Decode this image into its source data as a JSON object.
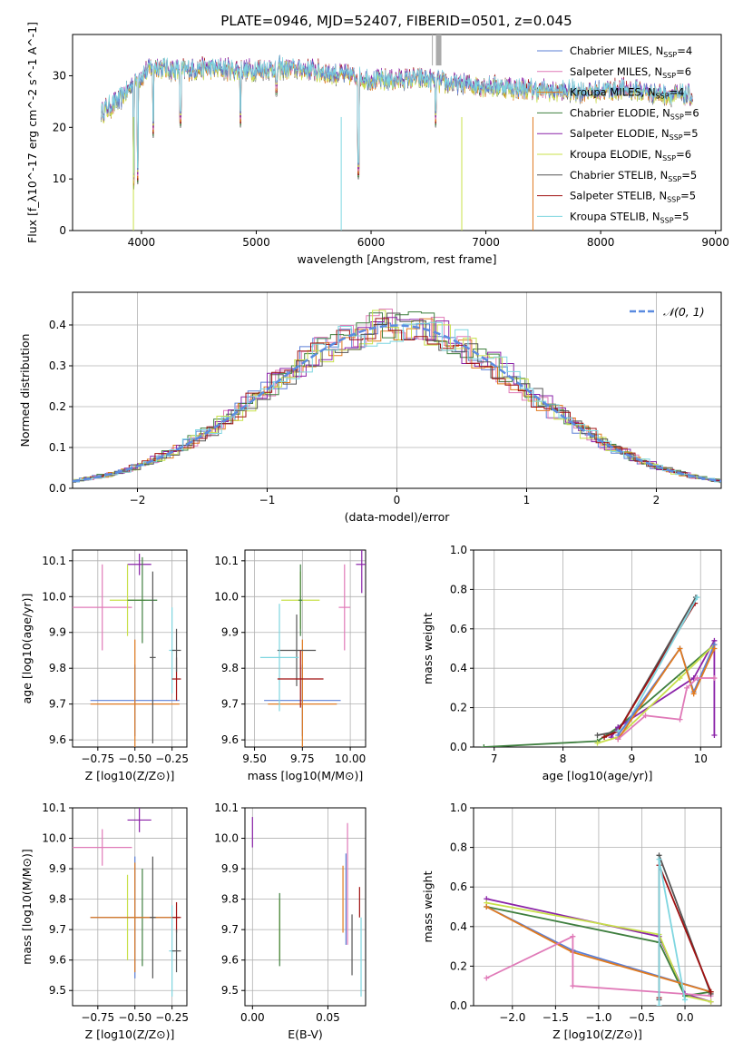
{
  "title": "PLATE=0946, MJD=52407, FIBERID=0501, z=0.045",
  "colors": {
    "chabrier_miles": "#5b7fd6",
    "salpeter_miles": "#e07ab8",
    "kroupa_miles": "#e07a1f",
    "chabrier_elodie": "#3f7f3f",
    "salpeter_elodie": "#8a22a8",
    "kroupa_elodie": "#c8e04a",
    "chabrier_stelib": "#555555",
    "salpeter_stelib": "#a01010",
    "kroupa_stelib": "#7fd6e0",
    "grid": "#b0b0b0",
    "normal": "#5b8be0"
  },
  "chart_data": [
    {
      "id": "spectrum",
      "type": "line",
      "xlabel": "wavelength [Angstrom, rest frame]",
      "ylabel": "Flux [f_λ10^-17 erg cm^-2 s^-1 A^-1]",
      "xlim": [
        3400,
        9050
      ],
      "ylim": [
        0,
        38
      ],
      "xticks": [
        4000,
        5000,
        6000,
        7000,
        8000,
        9000
      ],
      "yticks": [
        0,
        10,
        20,
        30
      ],
      "legend": "top-right",
      "series": [
        {
          "name": "Chabrier MILES, N_SSP=4",
          "key": "chabrier_miles"
        },
        {
          "name": "Salpeter MILES, N_SSP=6",
          "key": "salpeter_miles"
        },
        {
          "name": "Kroupa MILES, N_SSP=4",
          "key": "kroupa_miles"
        },
        {
          "name": "Chabrier ELODIE, N_SSP=6",
          "key": "chabrier_elodie"
        },
        {
          "name": "Salpeter ELODIE, N_SSP=5",
          "key": "salpeter_elodie"
        },
        {
          "name": "Kroupa ELODIE, N_SSP=6",
          "key": "kroupa_elodie"
        },
        {
          "name": "Chabrier STELIB, N_SSP=5",
          "key": "chabrier_stelib"
        },
        {
          "name": "Salpeter STELIB, N_SSP=5",
          "key": "salpeter_stelib"
        },
        {
          "name": "Kroupa STELIB, N_SSP=5",
          "key": "kroupa_stelib"
        }
      ],
      "continuum": [
        [
          3650,
          23
        ],
        [
          3800,
          25
        ],
        [
          3950,
          29
        ],
        [
          4100,
          32
        ],
        [
          4300,
          31
        ],
        [
          4600,
          31.5
        ],
        [
          4900,
          31
        ],
        [
          5200,
          31.5
        ],
        [
          5500,
          31
        ],
        [
          5800,
          30
        ],
        [
          6100,
          29
        ],
        [
          6400,
          29.5
        ],
        [
          6700,
          28.5
        ],
        [
          7000,
          28
        ],
        [
          7300,
          27.5
        ],
        [
          7600,
          27
        ],
        [
          7900,
          27
        ],
        [
          8200,
          27.5
        ],
        [
          8500,
          26.5
        ],
        [
          8800,
          26
        ]
      ],
      "absorption_dips": [
        [
          3934,
          8
        ],
        [
          3968,
          9
        ],
        [
          4101,
          18
        ],
        [
          4340,
          20
        ],
        [
          4861,
          20
        ],
        [
          5175,
          26
        ],
        [
          5890,
          10
        ],
        [
          6563,
          20
        ]
      ]
    },
    {
      "id": "residuals",
      "type": "line",
      "xlabel": "(data-model)/error",
      "ylabel": "Normed distribution",
      "xlim": [
        -2.5,
        2.5
      ],
      "ylim": [
        0,
        0.48
      ],
      "xticks": [
        -2,
        -1,
        0,
        1,
        2
      ],
      "yticks": [
        0.0,
        0.1,
        0.2,
        0.3,
        0.4
      ],
      "legend": "top-right",
      "reference_label": "𝒩(0, 1)"
    },
    {
      "id": "age-vs-Z",
      "type": "scatter",
      "xlabel": "Z [log10(Z/Z⊙)]",
      "ylabel": "age  [log10(age/yr)]",
      "xlim": [
        -0.92,
        -0.15
      ],
      "ylim": [
        9.58,
        10.13
      ],
      "xticks": [
        -0.75,
        -0.5,
        -0.25
      ],
      "yticks": [
        9.6,
        9.7,
        9.8,
        9.9,
        10.0,
        10.1
      ],
      "points": [
        {
          "key": "salpeter_miles",
          "x": -0.72,
          "xerr": 0.2,
          "y": 9.97,
          "yerr": 0.12
        },
        {
          "key": "salpeter_elodie",
          "x": -0.47,
          "xerr": 0.08,
          "y": 10.09,
          "yerr": 0.03
        },
        {
          "key": "kroupa_elodie",
          "x": -0.55,
          "xerr": 0.12,
          "y": 9.99,
          "yerr": 0.1
        },
        {
          "key": "chabrier_elodie",
          "x": -0.45,
          "xerr": 0.1,
          "y": 9.99,
          "yerr": 0.12
        },
        {
          "key": "chabrier_miles",
          "x": -0.5,
          "xerr": 0.3,
          "y": 9.71,
          "yerr": 0.1
        },
        {
          "key": "kroupa_miles",
          "x": -0.5,
          "xerr": 0.3,
          "y": 9.7,
          "yerr": 0.18
        },
        {
          "key": "chabrier_stelib",
          "x": -0.38,
          "xerr": 0.02,
          "y": 9.83,
          "yerr": 0.24
        },
        {
          "key": "kroupa_stelib",
          "x": -0.25,
          "xerr": 0.02,
          "y": 9.85,
          "yerr": 0.12
        },
        {
          "key": "salpeter_stelib",
          "x": -0.22,
          "xerr": 0.03,
          "y": 9.77,
          "yerr": 0.06
        },
        {
          "key": "chabrier_stelib",
          "x": -0.22,
          "xerr": 0.03,
          "y": 9.85,
          "yerr": 0.06
        }
      ]
    },
    {
      "id": "age-vs-mass",
      "type": "scatter",
      "xlabel": "mass [log10(M/M⊙)]",
      "ylabel": "",
      "xlim": [
        9.45,
        10.08
      ],
      "ylim": [
        9.58,
        10.13
      ],
      "xticks": [
        9.5,
        9.75,
        10.0
      ],
      "yticks": [
        9.6,
        9.7,
        9.8,
        9.9,
        10.0,
        10.1
      ],
      "points": [
        {
          "key": "salpeter_miles",
          "x": 9.97,
          "xerr": 0.03,
          "y": 9.97,
          "yerr": 0.12
        },
        {
          "key": "salpeter_elodie",
          "x": 10.06,
          "xerr": 0.03,
          "y": 10.09,
          "yerr": 0.08
        },
        {
          "key": "kroupa_elodie",
          "x": 9.74,
          "xerr": 0.1,
          "y": 9.99,
          "yerr": 0.08
        },
        {
          "key": "chabrier_elodie",
          "x": 9.74,
          "xerr": 0.01,
          "y": 9.99,
          "yerr": 0.1
        },
        {
          "key": "chabrier_miles",
          "x": 9.75,
          "xerr": 0.2,
          "y": 9.71,
          "yerr": 0.1
        },
        {
          "key": "kroupa_miles",
          "x": 9.75,
          "xerr": 0.18,
          "y": 9.7,
          "yerr": 0.18
        },
        {
          "key": "chabrier_stelib",
          "x": 9.72,
          "xerr": 0.1,
          "y": 9.85,
          "yerr": 0.1
        },
        {
          "key": "kroupa_stelib",
          "x": 9.63,
          "xerr": 0.1,
          "y": 9.83,
          "yerr": 0.15
        },
        {
          "key": "salpeter_stelib",
          "x": 9.74,
          "xerr": 0.12,
          "y": 9.77,
          "yerr": 0.08
        }
      ]
    },
    {
      "id": "weight-vs-age",
      "type": "line",
      "xlabel": "age  [log10(age/yr)]",
      "ylabel": "mass weight",
      "xlim": [
        6.7,
        10.3
      ],
      "ylim": [
        0,
        1
      ],
      "xticks": [
        7,
        8,
        9,
        10
      ],
      "yticks": [
        0.0,
        0.2,
        0.4,
        0.6,
        0.8,
        1.0
      ],
      "series": [
        {
          "key": "chabrier_elodie",
          "x": [
            6.85,
            8.5,
            8.8,
            10.2
          ],
          "y": [
            0.0,
            0.03,
            0.1,
            0.52
          ]
        },
        {
          "key": "salpeter_elodie",
          "x": [
            8.7,
            8.8,
            9.9,
            10.2,
            10.2
          ],
          "y": [
            0.05,
            0.1,
            0.35,
            0.54,
            0.06
          ]
        },
        {
          "key": "kroupa_elodie",
          "x": [
            8.5,
            8.8,
            9.7,
            10.2
          ],
          "y": [
            0.02,
            0.05,
            0.35,
            0.52
          ]
        },
        {
          "key": "chabrier_stelib",
          "x": [
            8.5,
            8.8,
            9.93
          ],
          "y": [
            0.06,
            0.08,
            0.76
          ]
        },
        {
          "key": "salpeter_stelib",
          "x": [
            8.6,
            8.8,
            9.92
          ],
          "y": [
            0.05,
            0.08,
            0.73
          ]
        },
        {
          "key": "kroupa_stelib",
          "x": [
            8.8,
            8.9,
            9.95
          ],
          "y": [
            0.08,
            0.1,
            0.76
          ]
        },
        {
          "key": "chabrier_miles",
          "x": [
            8.8,
            9.7,
            9.9,
            10.2
          ],
          "y": [
            0.06,
            0.5,
            0.28,
            0.52
          ]
        },
        {
          "key": "kroupa_miles",
          "x": [
            8.8,
            9.7,
            9.9,
            10.2
          ],
          "y": [
            0.04,
            0.5,
            0.27,
            0.5
          ]
        },
        {
          "key": "salpeter_miles",
          "x": [
            8.8,
            9.2,
            9.7,
            9.8,
            9.95,
            10.2
          ],
          "y": [
            0.04,
            0.16,
            0.14,
            0.3,
            0.35,
            0.35
          ]
        }
      ]
    },
    {
      "id": "mass-vs-Z",
      "type": "scatter",
      "xlabel": "Z [log10(Z/Z⊙)]",
      "ylabel": "mass [log10(M/M⊙)]",
      "xlim": [
        -0.92,
        -0.15
      ],
      "ylim": [
        9.45,
        10.1
      ],
      "xticks": [
        -0.75,
        -0.5,
        -0.25
      ],
      "yticks": [
        9.5,
        9.6,
        9.7,
        9.8,
        9.9,
        10.0,
        10.1
      ],
      "points": [
        {
          "key": "salpeter_miles",
          "x": -0.72,
          "xerr": 0.2,
          "y": 9.97,
          "yerr": 0.06
        },
        {
          "key": "salpeter_elodie",
          "x": -0.47,
          "xerr": 0.08,
          "y": 10.06,
          "yerr": 0.04
        },
        {
          "key": "kroupa_elodie",
          "x": -0.55,
          "xerr": 0.12,
          "y": 9.74,
          "yerr": 0.14
        },
        {
          "key": "chabrier_elodie",
          "x": -0.45,
          "xerr": 0.1,
          "y": 9.74,
          "yerr": 0.16
        },
        {
          "key": "chabrier_miles",
          "x": -0.5,
          "xerr": 0.3,
          "y": 9.74,
          "yerr": 0.2
        },
        {
          "key": "kroupa_miles",
          "x": -0.5,
          "xerr": 0.3,
          "y": 9.74,
          "yerr": 0.18
        },
        {
          "key": "chabrier_stelib",
          "x": -0.38,
          "xerr": 0.02,
          "y": 9.74,
          "yerr": 0.2
        },
        {
          "key": "kroupa_stelib",
          "x": -0.25,
          "xerr": 0.02,
          "y": 9.63,
          "yerr": 0.15
        },
        {
          "key": "salpeter_stelib",
          "x": -0.22,
          "xerr": 0.03,
          "y": 9.74,
          "yerr": 0.05
        },
        {
          "key": "chabrier_stelib",
          "x": -0.22,
          "xerr": 0.03,
          "y": 9.63,
          "yerr": 0.07
        }
      ]
    },
    {
      "id": "mass-vs-ebv",
      "type": "scatter",
      "xlabel": "E(B-V)",
      "ylabel": "",
      "xlim": [
        -0.005,
        0.075
      ],
      "ylim": [
        9.45,
        10.1
      ],
      "xticks": [
        0.0,
        0.05
      ],
      "yticks": [
        9.5,
        9.6,
        9.7,
        9.8,
        9.9,
        10.0,
        10.1
      ],
      "points": [
        {
          "key": "salpeter_elodie",
          "x": 0.0,
          "xerr": 0,
          "y": 10.02,
          "yerr": 0.05
        },
        {
          "key": "kroupa_elodie",
          "x": 0.018,
          "xerr": 0,
          "y": 9.7,
          "yerr": 0.1
        },
        {
          "key": "chabrier_elodie",
          "x": 0.018,
          "xerr": 0,
          "y": 9.7,
          "yerr": 0.12
        },
        {
          "key": "kroupa_miles",
          "x": 0.06,
          "xerr": 0,
          "y": 9.8,
          "yerr": 0.11
        },
        {
          "key": "salpeter_miles",
          "x": 0.063,
          "xerr": 0,
          "y": 9.85,
          "yerr": 0.2
        },
        {
          "key": "chabrier_miles",
          "x": 0.062,
          "xerr": 0,
          "y": 9.8,
          "yerr": 0.15
        },
        {
          "key": "chabrier_stelib",
          "x": 0.066,
          "xerr": 0,
          "y": 9.65,
          "yerr": 0.1
        },
        {
          "key": "salpeter_stelib",
          "x": 0.071,
          "xerr": 0,
          "y": 9.79,
          "yerr": 0.05
        },
        {
          "key": "kroupa_stelib",
          "x": 0.072,
          "xerr": 0,
          "y": 9.61,
          "yerr": 0.13
        }
      ]
    },
    {
      "id": "weight-vs-Z",
      "type": "line",
      "xlabel": "Z [log10(Z/Z⊙)]",
      "ylabel": "mass weight",
      "xlim": [
        -2.45,
        0.42
      ],
      "ylim": [
        0,
        1
      ],
      "xticks": [
        -2.0,
        -1.5,
        -1.0,
        -0.5,
        0.0
      ],
      "yticks": [
        0.0,
        0.2,
        0.4,
        0.6,
        0.8,
        1.0
      ],
      "series": [
        {
          "key": "salpeter_elodie",
          "x": [
            -2.3,
            -0.3,
            0.0,
            0.3
          ],
          "y": [
            0.54,
            0.35,
            0.06,
            0.02
          ]
        },
        {
          "key": "kroupa_elodie",
          "x": [
            -2.3,
            -0.3,
            0.0,
            0.3
          ],
          "y": [
            0.52,
            0.36,
            0.05,
            0.02
          ]
        },
        {
          "key": "chabrier_elodie",
          "x": [
            -2.3,
            -0.3,
            0.0,
            0.3
          ],
          "y": [
            0.5,
            0.32,
            0.05,
            0.07
          ]
        },
        {
          "key": "chabrier_miles",
          "x": [
            -2.3,
            -1.3,
            0.3
          ],
          "y": [
            0.5,
            0.28,
            0.07
          ]
        },
        {
          "key": "kroupa_miles",
          "x": [
            -2.3,
            -1.3,
            0.3
          ],
          "y": [
            0.5,
            0.27,
            0.07
          ]
        },
        {
          "key": "salpeter_miles",
          "x": [
            -2.3,
            -1.3,
            -1.3,
            0.3
          ],
          "y": [
            0.14,
            0.35,
            0.1,
            0.05
          ]
        },
        {
          "key": "chabrier_stelib",
          "x": [
            -0.3,
            -0.3,
            0.3
          ],
          "y": [
            0.03,
            0.76,
            0.06
          ]
        },
        {
          "key": "salpeter_stelib",
          "x": [
            -0.3,
            -0.3,
            0.3
          ],
          "y": [
            0.04,
            0.71,
            0.07
          ]
        },
        {
          "key": "kroupa_stelib",
          "x": [
            -0.3,
            -0.3,
            0.0
          ],
          "y": [
            0.0,
            0.74,
            0.03
          ]
        }
      ]
    }
  ]
}
